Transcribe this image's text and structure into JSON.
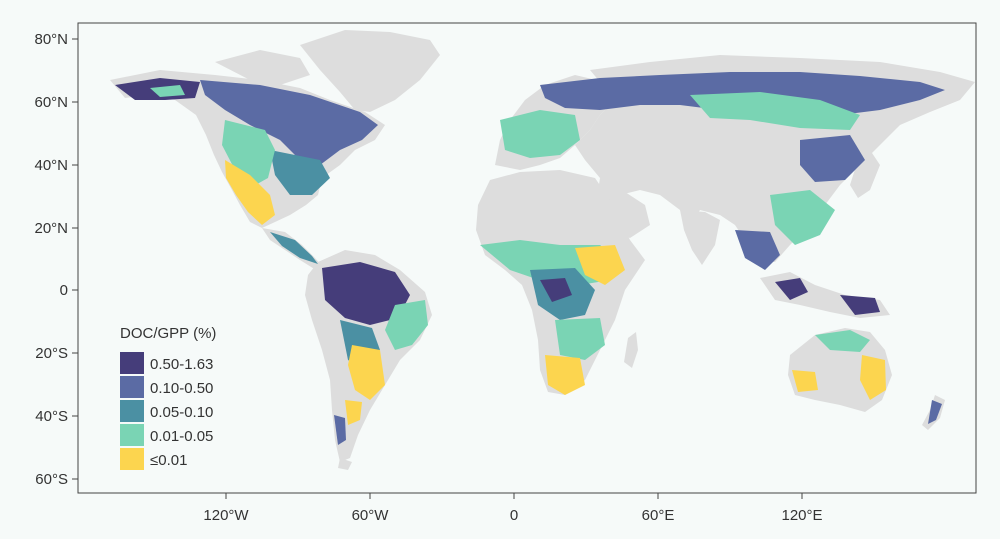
{
  "map": {
    "title": "",
    "projection": "equirectangular",
    "lat_ticks": [
      "80°N",
      "60°N",
      "40°N",
      "20°N",
      "0",
      "20°S",
      "40°S",
      "60°S"
    ],
    "lon_ticks": [
      "120°W",
      "60°W",
      "0",
      "60°E",
      "120°E"
    ],
    "land_color": "#dddddd",
    "ocean_color": "#f6faf9"
  },
  "legend": {
    "title": "DOC/GPP (%)",
    "entries": [
      {
        "label": "0.50-1.63",
        "color": "#453d7a"
      },
      {
        "label": "0.10-0.50",
        "color": "#5b6ba4"
      },
      {
        "label": "0.05-0.10",
        "color": "#4b90a3"
      },
      {
        "label": "0.01-0.05",
        "color": "#7ad4b4"
      },
      {
        "label": "≤0.01",
        "color": "#fcd54f"
      }
    ]
  }
}
